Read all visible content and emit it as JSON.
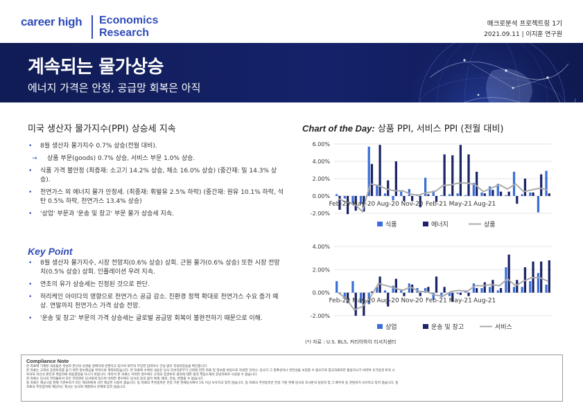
{
  "header": {
    "brand_left": "career high",
    "brand_right_line1": "Economics",
    "brand_right_line2": "Research",
    "series": "매크로분석 프로젝트링 1기",
    "date_author": "2021.09.11 | 이지훈 연구원"
  },
  "banner": {
    "title": "계속되는 물가상승",
    "subtitle": "에너지 가격은 안정, 공급망 회복은 아직"
  },
  "left": {
    "section_title": "미국 생산자 물가지수(PPI) 상승세 지속",
    "bullets": [
      {
        "type": "main",
        "text": "8월 생산자 물가지수 0.7% 상승(전월 대비)."
      },
      {
        "type": "sub",
        "text": "상품 부문(goods) 0.7% 상승, 서비스 부문 1.0% 상승."
      },
      {
        "type": "main",
        "text": "식품 가격 불안정 (최증재: 소고기 14.2% 상승, 채소 16.0% 상승) (중간재: 밀 14.3% 상승)."
      },
      {
        "type": "main",
        "text": "천연가스 외 에너지 물가 안정세. (최종재: 휘발유 2.5% 하락) (중간재: 원유 10.1% 하락, 석탄 0.5% 하락, 천연가스 13.4% 상승)"
      },
      {
        "type": "main",
        "text": "'상업' 부문과 '운송 및 창고' 부문 물가 상승세 지속."
      }
    ],
    "key_point_title": "Key Point",
    "key_points": [
      "8월 생산자 물가지수, 시장 전망치(0.6% 상승) 상회. 근원 물가(0.6% 상승) 또한 시장 전망치(0.5% 상승) 상회. 인플레이션 우려 지속.",
      "연초의 유가 상승세는 진정된 것으로 판단.",
      "허리케인 아이다의 영향으로 천연가스 공급 감소. 친환경 정책 확대로 천연가스 수요 증가 예상. 연말까지 천연가스 가격 상승 전망.",
      "'운송 및 창고' 부문의 가격 상승세는 글로벌 공급망 회복이 불완전하기 때문으로 이해."
    ]
  },
  "right": {
    "cotd_italic": "Chart of the Day:",
    "cotd_rest": " 상품 PPI, 서비스 PPI (전월 대비)",
    "source": "(*) 자료 : U.S. BLS, 커리어하이 리서치센터"
  },
  "chart_data": [
    {
      "type": "bar",
      "title": "",
      "x_tick_labels": [
        "Feb-20",
        "May-20",
        "Aug-20",
        "Nov-20",
        "Feb-21",
        "May-21",
        "Aug-21"
      ],
      "ylim": [
        -2,
        6
      ],
      "y_tick_labels": [
        "6.00%",
        "4.00%",
        "2.00%",
        "0.00%",
        "-2.00%"
      ],
      "y_ticks": [
        6,
        4,
        2,
        0,
        -2
      ],
      "legend_position": "bottom",
      "series": [
        {
          "name": "식품",
          "kind": "bar",
          "color": "#3b6fd8",
          "values": [
            0.2,
            -0.3,
            -1.0,
            -0.9,
            5.7,
            1.3,
            0.3,
            -0.5,
            0.5,
            0.8,
            0.1,
            2.1,
            0.6,
            0.1,
            0.2,
            0.3,
            0.1,
            1.5,
            0.4,
            1.1,
            1.4,
            0.1,
            2.8,
            0.2,
            0.4,
            -1.9,
            2.9
          ]
        },
        {
          "name": "에너지",
          "kind": "bar",
          "color": "#1a2466",
          "values": [
            -1.6,
            -2.1,
            -1.7,
            -1.8,
            3.7,
            5.9,
            1.8,
            4.0,
            -0.6,
            -0.6,
            -1.3,
            0.2,
            -0.7,
            4.8,
            4.7,
            5.9,
            4.8,
            2.8,
            0.3,
            0.7,
            0.5,
            0.5,
            -0.9,
            2.0,
            0.4,
            2.5,
            0.3
          ]
        },
        {
          "name": "상품",
          "kind": "line",
          "color": "#aaaaaa",
          "values": [
            -0.3,
            -0.7,
            -0.9,
            -1.8,
            1.4,
            1.2,
            0.8,
            0.6,
            0.6,
            0.2,
            0.1,
            0.4,
            0.5,
            1.2,
            1.3,
            1.5,
            1.5,
            1.3,
            0.5,
            0.9,
            1.3,
            0.8,
            1.4,
            0.5,
            0.7,
            0.9,
            0.7
          ]
        }
      ]
    },
    {
      "type": "bar",
      "title": "",
      "x_tick_labels": [
        "Feb-20",
        "May-20",
        "Aug-20",
        "Nov-20",
        "Feb-21",
        "May-21",
        "Aug-21"
      ],
      "ylim": [
        -2,
        4
      ],
      "y_tick_labels": [
        "4.00%",
        "2.00%",
        "0.00%",
        "-2.00%"
      ],
      "y_ticks": [
        4,
        2,
        0,
        -2
      ],
      "legend_position": "bottom",
      "series": [
        {
          "name": "상업",
          "kind": "bar",
          "color": "#3b6fd8",
          "values": [
            1.0,
            -0.5,
            1.0,
            -0.9,
            -1.0,
            0.5,
            0.2,
            0.6,
            0.3,
            0.8,
            0.4,
            0.4,
            -0.6,
            -0.4,
            -0.3,
            -0.1,
            0.2,
            0.8,
            0.4,
            0.5,
            0.2,
            2.2,
            0.5,
            0.5,
            1.0,
            1.7,
            0.7
          ]
        },
        {
          "name": "운송 및 창고",
          "kind": "bar",
          "color": "#1a2466",
          "values": [
            -0.1,
            -0.9,
            -2.0,
            -2.0,
            0.1,
            1.4,
            -1.2,
            1.2,
            -0.3,
            0.7,
            -0.3,
            0.5,
            1.4,
            0.5,
            -0.8,
            -0.2,
            -0.3,
            0.4,
            0.9,
            1.1,
            0.4,
            3.3,
            1.1,
            2.2,
            2.7,
            2.7,
            2.8
          ]
        },
        {
          "name": "서비스",
          "kind": "line",
          "color": "#aaaaaa",
          "values": [
            0.0,
            -0.5,
            -1.5,
            -1.2,
            -0.4,
            0.8,
            0.6,
            0.4,
            0.2,
            0.5,
            0.1,
            0.1,
            -0.2,
            -0.3,
            0.1,
            0.2,
            0.1,
            0.6,
            0.6,
            0.7,
            0.6,
            1.2,
            0.6,
            1.0,
            1.3,
            1.3,
            1.0
          ]
        }
      ]
    }
  ],
  "compliance": {
    "title": "Compliance Note",
    "lines": [
      "본 자료에 기재된 내용들은 작성자 본인의 의견을 정확하게 반영하고 있으며 외부의 부당한 압력이나 간섭 없이 작성되었음을 확인합니다.",
      "본 자료는 고객의 증권투자를 돕기 위한 정보제공을 목적으로 제작되었습니다. 본 자료에 수록된 내용은 당사 리서치본부가 신뢰할 만한 자료 및 정보를 바탕으로 작성한 것이나, 당사가 그 정확성이나 완전성을 보장할 수 없으므로 참고자료로만 활용하시기 바라며 유가증권 투자 시",
      "투자자 자신의 판단과 책임하에 최종결정을 하시기 바랍니다. 따라서 본 자료는 어떠한 경우에도 고객의 증권투자 결과에 대한 법적 책임소재의 증빙자료로 사용될 수 없습니다.",
      "본 자료는 당사의 저작물로서 모든 저작권은 당사에게 있으며 어떠한 경우에도 당사의 동의 없이 복제, 배포, 전송, 변형될 수 없습니다.",
      "동 자료는 제공시점 현재 기관투자가 또는 제3자에게 사전 제공한 사실이 없습니다. 동 자료의 추천종목은 전일 기준 현재당사에서 1% 이상 보유하고 있지 않습니다. 동 자료의 추천종목은 전일 기준 현재 당사의 조사분석 담당자 및 그 배우자 등 관련자가 보유하고 있지 않습니다. 동",
      "자료의 추천종목에 해당하는 회사는 당사와 계열회사 관계에 있지 않습니다."
    ]
  }
}
